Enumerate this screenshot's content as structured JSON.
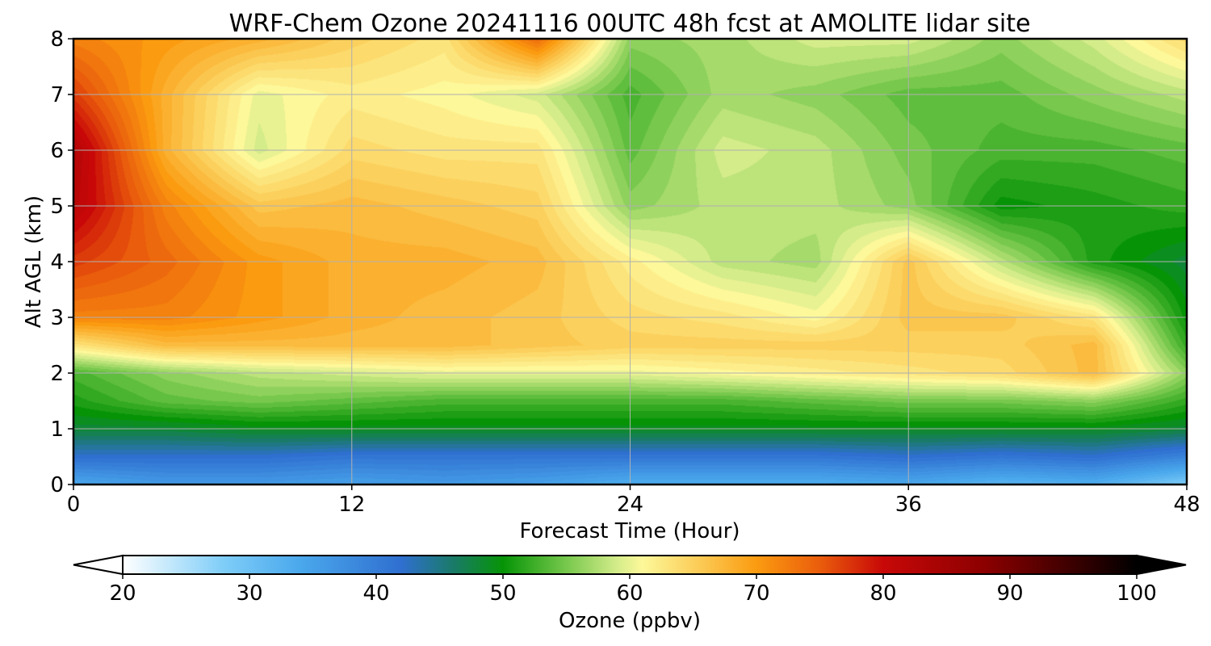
{
  "chart_data": {
    "type": "heatmap",
    "title": "WRF-Chem Ozone  20241116 00UTC 48h fcst at AMOLITE lidar site",
    "xlabel": "Forecast Time (Hour)",
    "ylabel": "Alt AGL (km)",
    "xlim": [
      0,
      48
    ],
    "ylim": [
      0,
      8
    ],
    "xticks": [
      "0",
      "12",
      "24",
      "36",
      "48"
    ],
    "yticks": [
      "0",
      "1",
      "2",
      "3",
      "4",
      "5",
      "6",
      "7",
      "8"
    ],
    "grid": true,
    "x": [
      0,
      4,
      8,
      12,
      16,
      20,
      24,
      28,
      32,
      36,
      40,
      44,
      48
    ],
    "y": [
      0,
      0.5,
      1,
      1.5,
      2,
      2.5,
      3,
      4,
      5,
      6,
      7,
      8
    ],
    "z": [
      [
        34,
        36,
        36,
        35,
        36,
        35,
        33,
        33,
        33,
        34,
        32,
        33,
        28
      ],
      [
        42,
        42,
        42,
        41,
        41,
        41,
        41,
        41,
        41,
        42,
        41,
        42,
        39
      ],
      [
        48,
        48,
        49,
        49,
        49,
        49,
        49,
        49,
        49,
        49,
        49,
        49,
        48
      ],
      [
        51,
        54,
        55,
        54,
        53,
        53,
        53,
        53,
        54,
        55,
        55,
        56,
        52
      ],
      [
        53,
        56,
        58,
        59,
        60,
        60,
        60,
        61,
        62,
        63,
        64,
        67,
        56
      ],
      [
        63,
        67,
        67,
        67,
        67,
        66,
        65,
        65,
        65,
        65,
        65,
        67,
        52
      ],
      [
        72,
        72,
        70,
        68,
        67,
        66,
        64,
        63,
        61,
        66,
        66,
        63,
        50
      ],
      [
        77,
        74,
        70,
        68,
        68,
        67,
        62,
        58,
        57,
        66,
        58,
        51,
        48
      ],
      [
        82,
        72,
        66,
        67,
        66,
        65,
        56,
        58,
        58,
        56,
        50,
        51,
        52
      ],
      [
        83,
        68,
        59,
        64,
        63,
        63,
        54,
        59,
        58,
        55,
        53,
        53,
        54
      ],
      [
        77,
        68,
        60,
        62,
        61,
        59,
        53,
        57,
        56,
        54,
        54,
        56,
        58
      ],
      [
        72,
        70,
        68,
        65,
        63,
        74,
        56,
        57,
        59,
        59,
        56,
        59,
        64
      ]
    ],
    "colorbar": {
      "label": "Ozone  (ppbv)",
      "min": 20,
      "max": 100,
      "ticks": [
        "20",
        "30",
        "40",
        "50",
        "60",
        "70",
        "80",
        "90",
        "100"
      ],
      "extend": "both",
      "stops": [
        {
          "v": 20,
          "c": "#ffffff"
        },
        {
          "v": 28,
          "c": "#7ecdf8"
        },
        {
          "v": 34,
          "c": "#4aa8ec"
        },
        {
          "v": 42,
          "c": "#2f6fd0"
        },
        {
          "v": 46,
          "c": "#1a7a6a"
        },
        {
          "v": 50,
          "c": "#069406"
        },
        {
          "v": 55,
          "c": "#77c84c"
        },
        {
          "v": 59,
          "c": "#d4ec8a"
        },
        {
          "v": 61,
          "c": "#fdf89a"
        },
        {
          "v": 66,
          "c": "#fbc64e"
        },
        {
          "v": 70,
          "c": "#fb9b10"
        },
        {
          "v": 75,
          "c": "#ea5d0c"
        },
        {
          "v": 80,
          "c": "#c80808"
        },
        {
          "v": 88,
          "c": "#8c0000"
        },
        {
          "v": 100,
          "c": "#000000"
        }
      ]
    }
  }
}
